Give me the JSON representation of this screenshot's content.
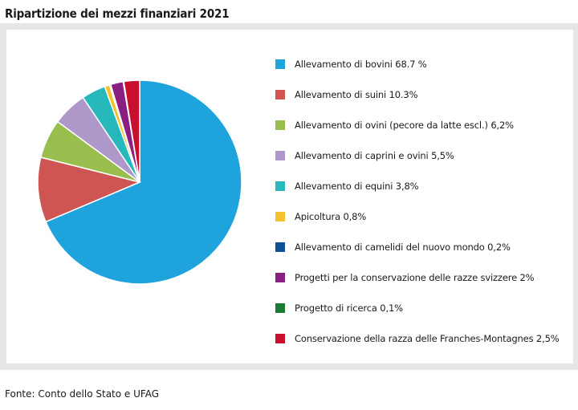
{
  "title": "Ripartizione dei mezzi finanziari 2021",
  "source": "Fonte: Conto dello Stato e UFAG",
  "chart_data": {
    "type": "pie",
    "title": "Ripartizione dei mezzi finanziari 2021",
    "legend_position": "right",
    "start_angle_deg": 0,
    "direction": "clockwise",
    "slices": [
      {
        "label": "Allevamento di bovini 68.7 %",
        "value": 68.7,
        "color": "#1ea3dc"
      },
      {
        "label": "Allevamento di suini 10.3%",
        "value": 10.3,
        "color": "#cf5552"
      },
      {
        "label": "Allevamento di ovini (pecore da latte escl.) 6,2%",
        "value": 6.2,
        "color": "#98be4e"
      },
      {
        "label": "Allevamento di caprini e ovini 5,5%",
        "value": 5.5,
        "color": "#ae97c9"
      },
      {
        "label": "Allevamento di equini 3,8%",
        "value": 3.8,
        "color": "#27b8bb"
      },
      {
        "label": "Apicoltura 0,8%",
        "value": 0.8,
        "color": "#f5c12e"
      },
      {
        "label": "Allevamento di camelidi del nuovo mondo 0,2%",
        "value": 0.2,
        "color": "#0f4f97"
      },
      {
        "label": "Progetti per la conservazione delle razze svizzere 2%",
        "value": 2.0,
        "color": "#8a1f82"
      },
      {
        "label": "Progetto di ricerca 0,1%",
        "value": 0.1,
        "color": "#1a7a34"
      },
      {
        "label": "Conservazione della razza delle Franches-Montagnes 2,5%",
        "value": 2.5,
        "color": "#c8102e"
      }
    ]
  }
}
